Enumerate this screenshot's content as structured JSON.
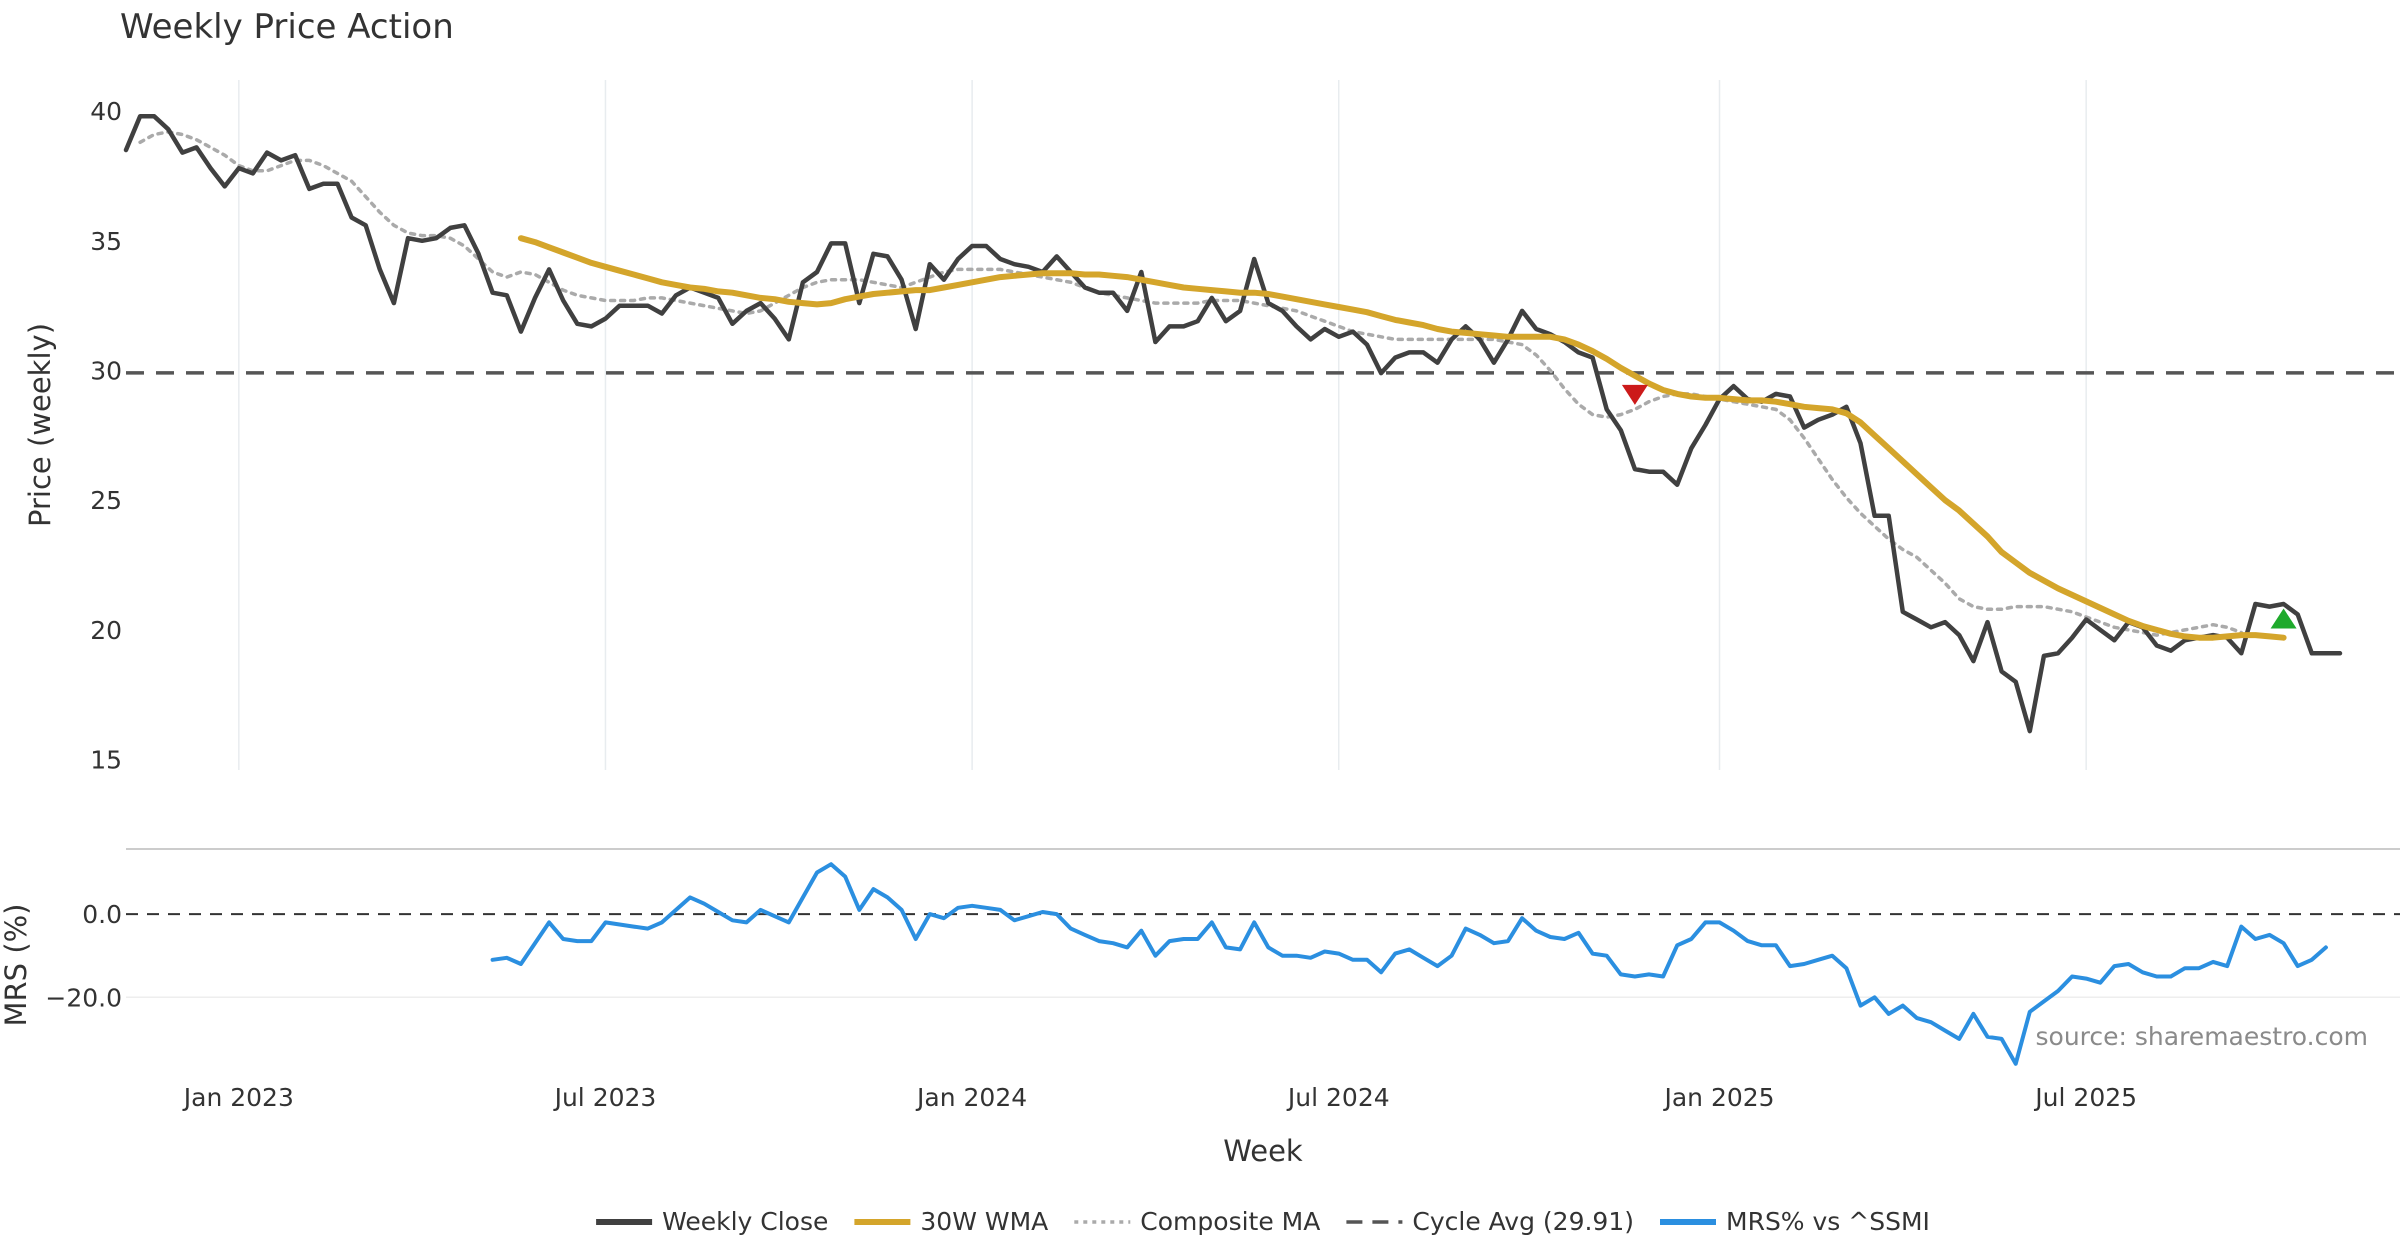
{
  "chart_data": {
    "type": "line",
    "title": "Weekly Price Action",
    "xlabel": "Week",
    "source": "source: sharemaestro.com",
    "x_ticks": [
      {
        "label": "Jan 2023",
        "week": 8
      },
      {
        "label": "Jul 2023",
        "week": 34
      },
      {
        "label": "Jan 2024",
        "week": 60
      },
      {
        "label": "Jul 2024",
        "week": 86
      },
      {
        "label": "Jan 2025",
        "week": 113
      },
      {
        "label": "Jul 2025",
        "week": 139
      }
    ],
    "x_range": [
      0,
      157
    ],
    "price_panel": {
      "ylabel": "Price (weekly)",
      "ylim": [
        14.6,
        41.2
      ],
      "y_ticks": [
        15,
        20,
        25,
        30,
        35,
        40
      ],
      "cycle_avg": 29.91,
      "weekly_close": [
        38.5,
        39.8,
        39.8,
        39.3,
        38.4,
        38.6,
        37.8,
        37.1,
        37.8,
        37.6,
        38.4,
        38.1,
        38.3,
        37.0,
        37.2,
        37.2,
        35.9,
        35.6,
        33.9,
        32.6,
        35.1,
        35.0,
        35.1,
        35.5,
        35.6,
        34.5,
        33.0,
        32.9,
        31.5,
        32.8,
        33.9,
        32.7,
        31.8,
        31.7,
        32.0,
        32.5,
        32.5,
        32.5,
        32.2,
        32.9,
        33.2,
        33.0,
        32.8,
        31.8,
        32.3,
        32.6,
        32.0,
        31.2,
        33.4,
        33.8,
        34.9,
        34.9,
        32.6,
        34.5,
        34.4,
        33.5,
        31.6,
        34.1,
        33.5,
        34.3,
        34.8,
        34.8,
        34.3,
        34.1,
        34.0,
        33.8,
        34.4,
        33.8,
        33.2,
        33.0,
        33.0,
        32.3,
        33.8,
        31.1,
        31.7,
        31.7,
        31.9,
        32.8,
        31.9,
        32.3,
        34.3,
        32.6,
        32.3,
        31.7,
        31.2,
        31.6,
        31.3,
        31.5,
        31.0,
        29.9,
        30.5,
        30.7,
        30.7,
        30.3,
        31.2,
        31.7,
        31.2,
        30.3,
        31.2,
        32.3,
        31.6,
        31.4,
        31.1,
        30.7,
        30.5,
        28.5,
        27.7,
        26.2,
        26.1,
        26.1,
        25.6,
        27.0,
        27.9,
        28.9,
        29.4,
        28.9,
        28.8,
        29.1,
        29.0,
        27.8,
        28.1,
        28.3,
        28.6,
        27.2,
        24.4,
        24.4,
        20.7,
        20.4,
        20.1,
        20.3,
        19.8,
        18.8,
        20.3,
        18.4,
        18.0,
        16.1,
        19.0,
        19.1,
        19.7,
        20.4,
        20.0,
        19.6,
        20.3,
        20.1,
        19.4,
        19.2,
        19.6,
        19.7,
        19.8,
        19.7,
        19.1,
        21.0,
        20.9,
        21.0,
        20.6,
        19.1,
        19.1,
        19.1
      ],
      "wma_30w": {
        "start_week": 28,
        "values": [
          35.1,
          34.95,
          34.75,
          34.55,
          34.35,
          34.15,
          34.0,
          33.85,
          33.7,
          33.55,
          33.4,
          33.3,
          33.2,
          33.15,
          33.05,
          33.0,
          32.9,
          32.8,
          32.75,
          32.65,
          32.6,
          32.55,
          32.6,
          32.75,
          32.85,
          32.95,
          33.0,
          33.05,
          33.1,
          33.1,
          33.2,
          33.3,
          33.4,
          33.5,
          33.6,
          33.65,
          33.7,
          33.75,
          33.75,
          33.75,
          33.7,
          33.7,
          33.65,
          33.6,
          33.5,
          33.4,
          33.3,
          33.2,
          33.15,
          33.1,
          33.05,
          33.0,
          33.0,
          32.95,
          32.85,
          32.75,
          32.65,
          32.55,
          32.45,
          32.35,
          32.25,
          32.1,
          31.95,
          31.85,
          31.75,
          31.6,
          31.5,
          31.45,
          31.4,
          31.35,
          31.3,
          31.3,
          31.3,
          31.3,
          31.2,
          31.0,
          30.75,
          30.45,
          30.1,
          29.8,
          29.5,
          29.25,
          29.1,
          29.0,
          28.95,
          28.95,
          28.9,
          28.85,
          28.85,
          28.8,
          28.7,
          28.6,
          28.55,
          28.5,
          28.35,
          28.0,
          27.5,
          27.0,
          26.5,
          26.0,
          25.5,
          25.0,
          24.6,
          24.1,
          23.6,
          23.0,
          22.6,
          22.2,
          21.9,
          21.6,
          21.35,
          21.1,
          20.85,
          20.6,
          20.35,
          20.15,
          20.0,
          19.85,
          19.75,
          19.7,
          19.7,
          19.75,
          19.8,
          19.8,
          19.75,
          19.7
        ]
      },
      "composite_ma": {
        "start_week": 1,
        "values": [
          38.8,
          39.1,
          39.2,
          39.1,
          38.9,
          38.6,
          38.3,
          37.9,
          37.7,
          37.7,
          37.9,
          38.1,
          38.1,
          37.9,
          37.6,
          37.3,
          36.7,
          36.1,
          35.6,
          35.3,
          35.2,
          35.2,
          35.1,
          34.8,
          34.3,
          33.8,
          33.6,
          33.8,
          33.7,
          33.4,
          33.1,
          32.9,
          32.8,
          32.7,
          32.7,
          32.7,
          32.8,
          32.8,
          32.7,
          32.6,
          32.5,
          32.4,
          32.3,
          32.2,
          32.3,
          32.6,
          32.9,
          33.2,
          33.4,
          33.5,
          33.5,
          33.5,
          33.4,
          33.3,
          33.2,
          33.4,
          33.6,
          33.8,
          33.9,
          33.9,
          33.9,
          33.9,
          33.8,
          33.7,
          33.6,
          33.5,
          33.4,
          33.2,
          33.0,
          32.9,
          32.8,
          32.7,
          32.6,
          32.6,
          32.6,
          32.6,
          32.7,
          32.7,
          32.7,
          32.6,
          32.5,
          32.4,
          32.3,
          32.1,
          31.9,
          31.7,
          31.5,
          31.4,
          31.3,
          31.2,
          31.2,
          31.2,
          31.2,
          31.2,
          31.2,
          31.2,
          31.2,
          31.1,
          31.0,
          30.6,
          30.0,
          29.3,
          28.7,
          28.3,
          28.2,
          28.3,
          28.5,
          28.8,
          29.0,
          29.1,
          29.1,
          29.0,
          28.9,
          28.8,
          28.7,
          28.6,
          28.5,
          28.1,
          27.4,
          26.6,
          25.8,
          25.1,
          24.5,
          24.0,
          23.5,
          23.1,
          22.8,
          22.3,
          21.8,
          21.2,
          20.9,
          20.8,
          20.8,
          20.9,
          20.9,
          20.9,
          20.8,
          20.7,
          20.5,
          20.3,
          20.1,
          20.0,
          19.9,
          19.8,
          19.9,
          20.0,
          20.1,
          20.2,
          20.1,
          19.9
        ]
      },
      "signals": [
        {
          "type": "sell",
          "week": 107,
          "price": 29.1
        },
        {
          "type": "buy",
          "week": 153,
          "price": 20.4
        }
      ]
    },
    "mrs_panel": {
      "ylabel": "MRS (%)",
      "ylim": [
        -37,
        13
      ],
      "y_ticks": [
        0.0,
        -20.0
      ],
      "y_tick_labels": [
        "0.0",
        "−20.0"
      ],
      "zero_line": 0,
      "start_week": 26,
      "values": [
        -11,
        -10.5,
        -12,
        -7,
        -2,
        -6,
        -6.5,
        -6.5,
        -2,
        -2.5,
        -3,
        -3.5,
        -2,
        1,
        4,
        2.5,
        0.5,
        -1.5,
        -2,
        1,
        -0.5,
        -2,
        4,
        10,
        12,
        9,
        1,
        6,
        4,
        1,
        -6,
        0,
        -1,
        1.5,
        2,
        1.5,
        1,
        -1.5,
        -0.5,
        0.5,
        0,
        -3.5,
        -5,
        -6.5,
        -7,
        -8,
        -4,
        -10,
        -6.5,
        -6,
        -6,
        -2,
        -8,
        -8.5,
        -2,
        -8,
        -10,
        -10,
        -10.5,
        -9,
        -9.5,
        -11,
        -11,
        -14,
        -9.5,
        -8.5,
        -10.5,
        -12.5,
        -10,
        -3.5,
        -5,
        -7,
        -6.5,
        -1,
        -4,
        -5.5,
        -6,
        -4.5,
        -9.5,
        -10,
        -14.5,
        -15,
        -14.5,
        -15,
        -7.5,
        -6,
        -2,
        -2,
        -4,
        -6.5,
        -7.5,
        -7.5,
        -12.5,
        -12,
        -11,
        -10,
        -13,
        -22,
        -20,
        -24,
        -22,
        -25,
        -26,
        -28,
        -30,
        -24,
        -29.5,
        -30,
        -36,
        -23.5,
        -21,
        -18.5,
        -15,
        -15.5,
        -16.5,
        -12.5,
        -12,
        -14,
        -15,
        -15,
        -13,
        -13,
        -11.5,
        -12.5,
        -3,
        -6,
        -5,
        -7,
        -12.5,
        -11,
        -8
      ]
    },
    "legend": [
      {
        "label": "Weekly Close",
        "color": "#404040",
        "style": "solid"
      },
      {
        "label": "30W WMA",
        "color": "#d4a52b",
        "style": "solid"
      },
      {
        "label": "Composite MA",
        "color": "#aaaaaa",
        "style": "dotted"
      },
      {
        "label": "Cycle Avg (29.91)",
        "color": "#555555",
        "style": "dashed"
      },
      {
        "label": "MRS% vs ^SSMI",
        "color": "#2b8fe0",
        "style": "solid"
      }
    ],
    "colors": {
      "close": "#404040",
      "wma": "#d4a52b",
      "composite": "#aaaaaa",
      "cycle": "#555555",
      "mrs": "#2b8fe0",
      "sell": "#cc1a1a",
      "buy": "#1faa2c",
      "grid": "#e8ecef"
    }
  }
}
